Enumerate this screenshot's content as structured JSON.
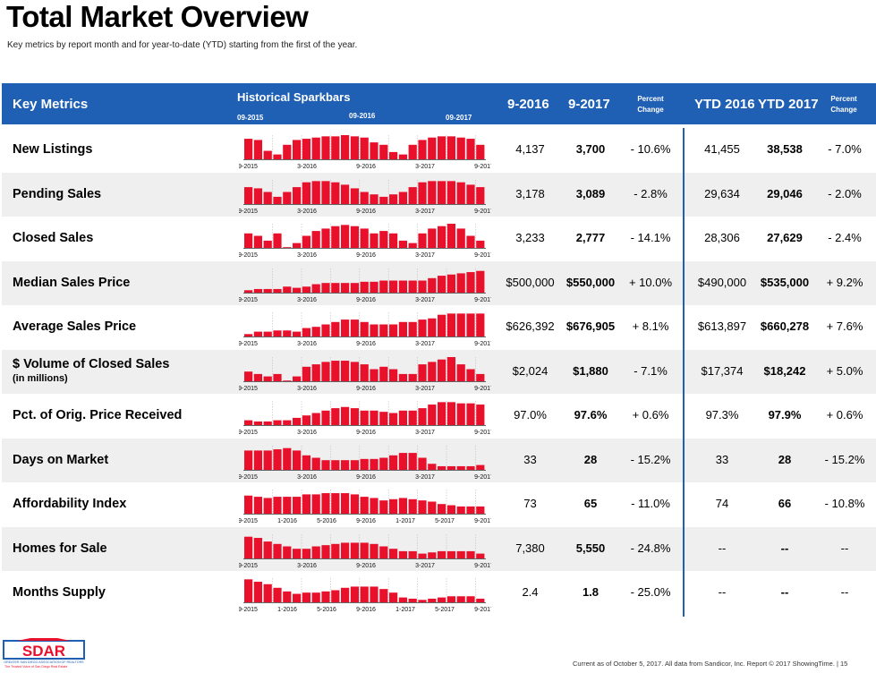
{
  "page": {
    "title": "Total Market Overview",
    "subtitle": "Key metrics by report month and for year-to-date (YTD) starting from the first of the year."
  },
  "header": {
    "key_metrics": "Key Metrics",
    "sparkbars": "Historical Sparkbars",
    "spark_label_1": "09-2015",
    "spark_label_2": "09-2016",
    "spark_label_3": "09-2017",
    "col_2016": "9-2016",
    "col_2017": "9-2017",
    "percent_change": "Percent Change",
    "ytd_2016": "YTD 2016",
    "ytd_2017": "YTD 2017",
    "percent_change_ytd": "Percent Change"
  },
  "colors": {
    "header_blue": "#1f5fb4",
    "bar_red": "#e8102a",
    "row_shade": "#efefef"
  },
  "chart_data": [
    {
      "type": "bar",
      "title": "New Listings",
      "x_ticks": [
        "9-2015",
        "3-2016",
        "9-2016",
        "3-2017",
        "9-2017"
      ],
      "values": [
        8.5,
        8,
        3.5,
        2,
        6,
        8,
        8.5,
        9,
        9.5,
        9.5,
        10,
        9.5,
        9,
        7,
        6,
        3,
        2,
        6,
        8,
        9,
        9.5,
        9.5,
        9,
        8.5,
        6
      ]
    },
    {
      "type": "bar",
      "title": "Pending Sales",
      "x_ticks": [
        "9-2015",
        "3-2016",
        "9-2016",
        "3-2017",
        "9-2017"
      ],
      "values": [
        7,
        6.5,
        5,
        3,
        5,
        7,
        9,
        9.5,
        9.5,
        9,
        8,
        6.5,
        5,
        4,
        3,
        4,
        5,
        7,
        9,
        9.5,
        9.5,
        9.5,
        9,
        8,
        7
      ]
    },
    {
      "type": "bar",
      "title": "Closed Sales",
      "x_ticks": [
        "9-2015",
        "3-2016",
        "9-2016",
        "3-2017",
        "9-2017"
      ],
      "values": [
        6,
        5,
        3,
        6,
        0,
        2,
        5,
        7,
        8,
        9,
        9.5,
        9,
        8,
        6,
        7,
        6,
        3,
        2,
        6,
        8,
        9,
        10,
        8,
        5,
        3
      ]
    },
    {
      "type": "bar",
      "title": "Median Sales Price",
      "x_ticks": [
        "9-2015",
        "3-2016",
        "9-2016",
        "3-2017",
        "9-2017"
      ],
      "values": [
        1,
        1.5,
        1.5,
        1.5,
        2.5,
        2,
        2.5,
        3.5,
        4,
        4,
        4,
        4,
        4.5,
        4.5,
        5,
        5,
        5,
        5,
        5,
        6,
        7,
        7.5,
        8,
        8.5,
        9
      ]
    },
    {
      "type": "bar",
      "title": "Average Sales Price",
      "x_ticks": [
        "9-2015",
        "3-2016",
        "9-2016",
        "3-2017",
        "9-2017"
      ],
      "values": [
        1,
        2,
        2,
        2.5,
        2.5,
        2,
        3.5,
        4,
        5,
        6,
        7,
        7,
        6,
        5,
        5,
        5,
        6,
        6,
        7,
        7.5,
        9,
        9.5,
        9.5,
        9.5,
        9.5
      ]
    },
    {
      "type": "bar",
      "title": "$ Volume of Closed Sales",
      "x_ticks": [
        "9-2015",
        "3-2016",
        "9-2016",
        "3-2017",
        "9-2017"
      ],
      "values": [
        4,
        3,
        2,
        3,
        0,
        2,
        6,
        7,
        8,
        8.5,
        8.5,
        8,
        7,
        5,
        6,
        5,
        3,
        3,
        7,
        8,
        9,
        10,
        7,
        5,
        3
      ]
    },
    {
      "type": "bar",
      "title": "Pct. of Orig. Price Received",
      "x_ticks": [
        "9-2015",
        "3-2016",
        "9-2016",
        "3-2017",
        "9-2017"
      ],
      "values": [
        2,
        1.5,
        1.5,
        2,
        2,
        3,
        4,
        5,
        6,
        7,
        7.5,
        7,
        6,
        6,
        5.5,
        5,
        6,
        6,
        7,
        8.5,
        9.5,
        9.5,
        9,
        9,
        8.5
      ]
    },
    {
      "type": "bar",
      "title": "Days on Market",
      "x_ticks": [
        "9-2015",
        "3-2016",
        "9-2016",
        "3-2017",
        "9-2017"
      ],
      "values": [
        8,
        8,
        8,
        8.5,
        9,
        8,
        6,
        5,
        4,
        4,
        4,
        4,
        4.5,
        4.5,
        5,
        6,
        7,
        7,
        5,
        2.5,
        1.5,
        1.5,
        1.5,
        1.5,
        2
      ]
    },
    {
      "type": "bar",
      "title": "Affordability Index",
      "x_ticks": [
        "9-2015",
        "1-2016",
        "5-2016",
        "9-2016",
        "1-2017",
        "5-2017",
        "9-2017"
      ],
      "values": [
        7.5,
        7,
        6.5,
        7,
        7,
        7,
        8,
        8,
        8.5,
        8.5,
        8.5,
        8,
        7,
        6.5,
        5.5,
        6,
        6.5,
        6,
        5.5,
        5,
        4,
        3.5,
        3,
        3,
        3
      ]
    },
    {
      "type": "bar",
      "title": "Homes for Sale",
      "x_ticks": [
        "9-2015",
        "3-2016",
        "9-2016",
        "3-2017",
        "9-2017"
      ],
      "values": [
        9,
        8.5,
        7,
        6,
        5,
        4,
        4,
        5,
        5.5,
        6,
        6.5,
        6.5,
        6.5,
        6,
        5,
        4,
        3,
        3,
        2,
        2.5,
        3,
        3,
        3,
        3,
        2
      ]
    },
    {
      "type": "bar",
      "title": "Months Supply",
      "x_ticks": [
        "9-2015",
        "1-2016",
        "5-2016",
        "9-2016",
        "1-2017",
        "5-2017",
        "9-2017"
      ],
      "values": [
        9.5,
        8.5,
        7.5,
        6,
        4.5,
        3.5,
        4,
        4,
        4.5,
        5,
        6,
        6.5,
        6.5,
        6.5,
        5.5,
        4,
        2,
        1.5,
        1,
        1.5,
        2,
        2.5,
        2.5,
        2.5,
        1.5
      ]
    }
  ],
  "rows": [
    {
      "label": "New Listings",
      "sublabel": "",
      "v2016": "4,137",
      "v2017": "3,700",
      "pct": "- 10.6%",
      "ytd2016": "41,455",
      "ytd2017": "38,538",
      "ytd_pct": "- 7.0%"
    },
    {
      "label": "Pending Sales",
      "sublabel": "",
      "v2016": "3,178",
      "v2017": "3,089",
      "pct": "- 2.8%",
      "ytd2016": "29,634",
      "ytd2017": "29,046",
      "ytd_pct": "- 2.0%"
    },
    {
      "label": "Closed Sales",
      "sublabel": "",
      "v2016": "3,233",
      "v2017": "2,777",
      "pct": "- 14.1%",
      "ytd2016": "28,306",
      "ytd2017": "27,629",
      "ytd_pct": "- 2.4%"
    },
    {
      "label": "Median Sales Price",
      "sublabel": "",
      "v2016": "$500,000",
      "v2017": "$550,000",
      "pct": "+ 10.0%",
      "ytd2016": "$490,000",
      "ytd2017": "$535,000",
      "ytd_pct": "+ 9.2%"
    },
    {
      "label": "Average Sales Price",
      "sublabel": "",
      "v2016": "$626,392",
      "v2017": "$676,905",
      "pct": "+ 8.1%",
      "ytd2016": "$613,897",
      "ytd2017": "$660,278",
      "ytd_pct": "+ 7.6%"
    },
    {
      "label": "$ Volume of Closed Sales",
      "sublabel": "(in millions)",
      "v2016": "$2,024",
      "v2017": "$1,880",
      "pct": "- 7.1%",
      "ytd2016": "$17,374",
      "ytd2017": "$18,242",
      "ytd_pct": "+ 5.0%"
    },
    {
      "label": "Pct. of Orig. Price Received",
      "sublabel": "",
      "v2016": "97.0%",
      "v2017": "97.6%",
      "pct": "+ 0.6%",
      "ytd2016": "97.3%",
      "ytd2017": "97.9%",
      "ytd_pct": "+ 0.6%"
    },
    {
      "label": "Days on Market",
      "sublabel": "",
      "v2016": "33",
      "v2017": "28",
      "pct": "- 15.2%",
      "ytd2016": "33",
      "ytd2017": "28",
      "ytd_pct": "- 15.2%"
    },
    {
      "label": "Affordability Index",
      "sublabel": "",
      "v2016": "73",
      "v2017": "65",
      "pct": "- 11.0%",
      "ytd2016": "74",
      "ytd2017": "66",
      "ytd_pct": "- 10.8%"
    },
    {
      "label": "Homes for Sale",
      "sublabel": "",
      "v2016": "7,380",
      "v2017": "5,550",
      "pct": "- 24.8%",
      "ytd2016": "--",
      "ytd2017": "--",
      "ytd_pct": "--"
    },
    {
      "label": "Months Supply",
      "sublabel": "",
      "v2016": "2.4",
      "v2017": "1.8",
      "pct": "- 25.0%",
      "ytd2016": "--",
      "ytd2017": "--",
      "ytd_pct": "--"
    }
  ],
  "footer": {
    "logo_text": "SDAR",
    "logo_subtext": "GREATER SAN DIEGO ASSOCIATION OF REALTORS",
    "logo_tagline": "The Trusted Voice of San Diego Real Estate",
    "note": "Current as of October 5, 2017. All data from Sandicor, Inc. Report © 2017 ShowingTime.  |  15"
  }
}
